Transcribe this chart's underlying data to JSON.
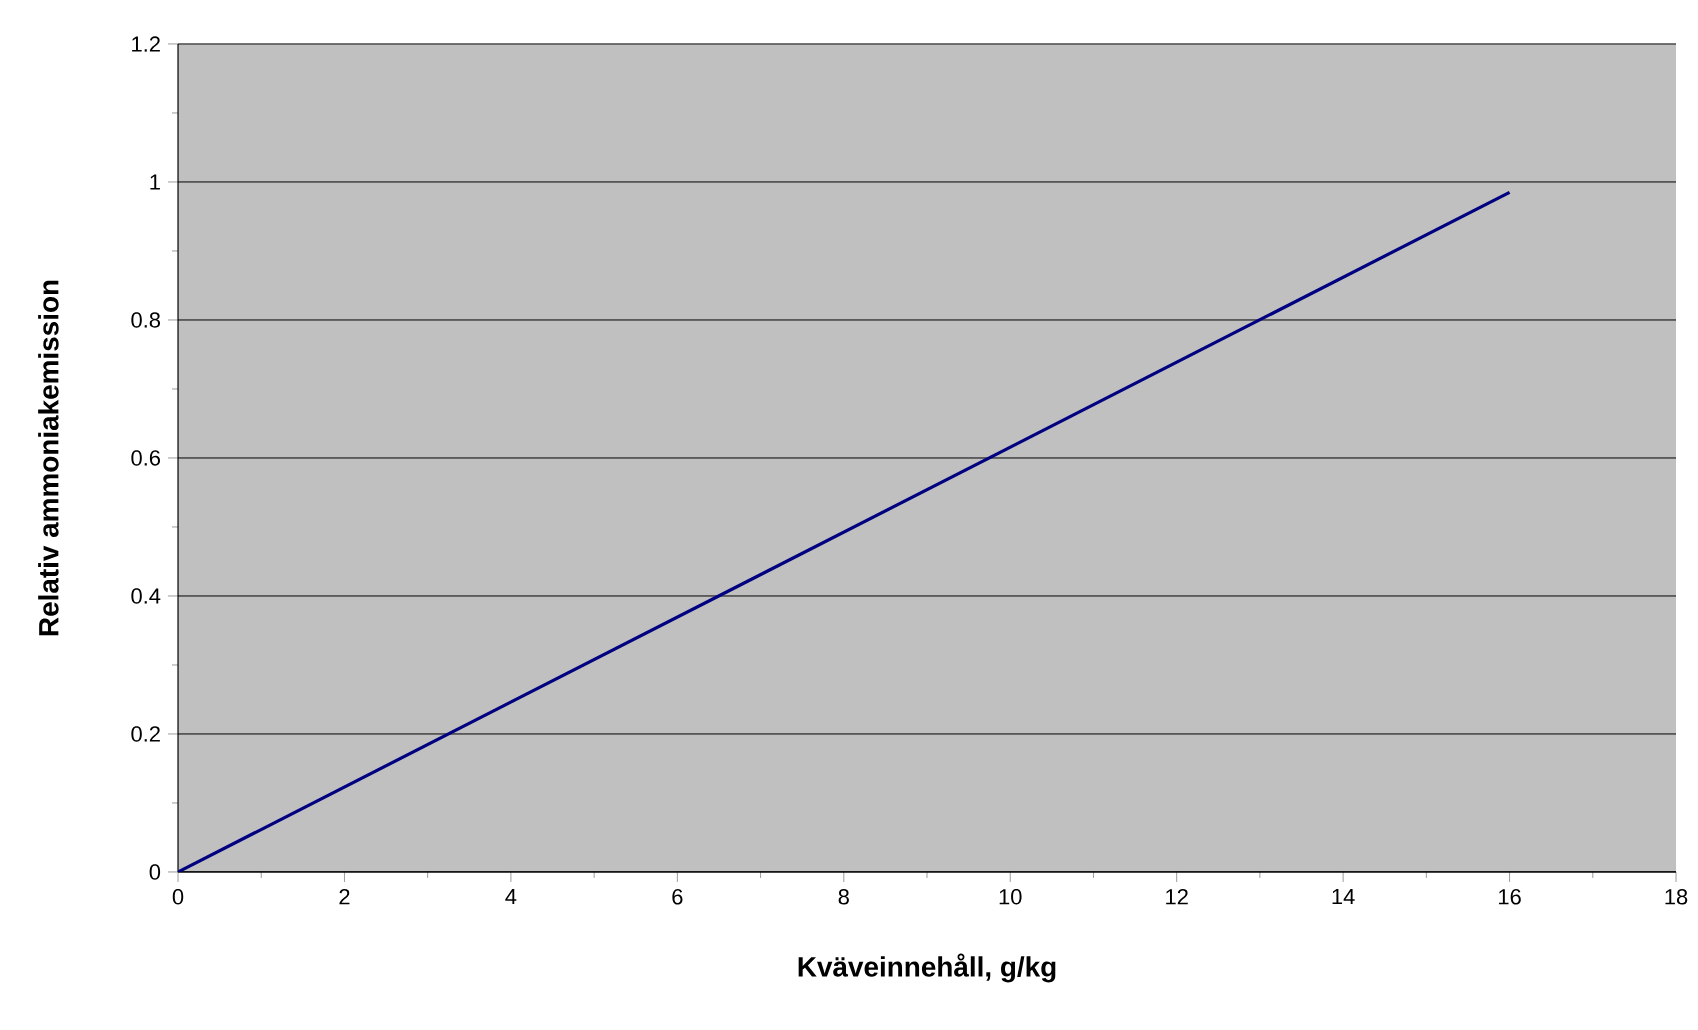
{
  "chart_data": {
    "type": "line",
    "xlabel": "Kväveinnehåll, g/kg",
    "ylabel": "Relativ ammoniakemission",
    "x": [
      0,
      16
    ],
    "series": [
      {
        "color": "#000080",
        "values": [
          0,
          0.985
        ]
      }
    ],
    "xlim": [
      0,
      18
    ],
    "xticks": [
      0,
      2,
      4,
      6,
      8,
      10,
      12,
      14,
      16,
      18
    ],
    "ylim": [
      0,
      1.2
    ],
    "yticks": [
      0,
      0.2,
      0.4,
      0.6,
      0.8,
      1,
      1.2
    ],
    "grid": "y",
    "marker": "none",
    "line_style": "solid"
  }
}
